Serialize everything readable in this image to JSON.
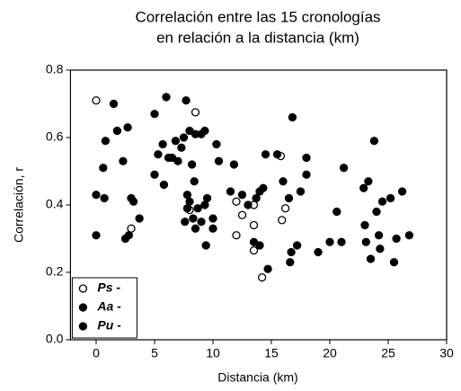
{
  "chart_data": {
    "type": "scatter",
    "title": [
      "Correlación entre las 15 cronologías",
      "en relación a la distancia (km)"
    ],
    "xlabel": "Distancia (km)",
    "ylabel": "Correlación, r",
    "xlim": [
      -2.2,
      30
    ],
    "ylim": [
      0,
      0.8
    ],
    "xticks": [
      0,
      5,
      10,
      15,
      20,
      25,
      30
    ],
    "yticks": [
      {
        "value": 0,
        "label": "0.0"
      },
      0.2,
      0.4,
      0.6,
      0.8
    ],
    "legend": "lower left",
    "series": [
      {
        "name": "Ps -",
        "color": "#000000",
        "marker": "open",
        "x": [
          0,
          8.5,
          3,
          8,
          12,
          12.5,
          12,
          13.5,
          13.5,
          13.5,
          14.2,
          15.8,
          16.2,
          15.9
        ],
        "values": [
          0.71,
          0.675,
          0.33,
          0.385,
          0.41,
          0.37,
          0.31,
          0.4,
          0.34,
          0.265,
          0.185,
          0.545,
          0.39,
          0.355
        ]
      },
      {
        "name": "Aa -",
        "color": "#000000",
        "marker": "filled",
        "x": [
          0,
          0,
          0.6,
          0.7,
          0.8,
          1.5,
          1.8,
          2.3,
          2.7,
          2.5,
          2.8,
          3,
          3.2,
          3.7,
          5,
          5,
          5.3,
          5.7,
          6,
          5.8,
          6.2,
          6.5,
          6.8,
          7,
          7.3,
          7.5,
          7.7,
          8,
          8.5,
          9,
          9.3,
          7.8,
          8,
          7.6,
          8.3,
          8.5,
          8.7,
          9,
          9.3,
          9.5,
          9.4,
          8.2,
          8.4,
          7.8
        ],
        "values": [
          0.43,
          0.31,
          0.51,
          0.42,
          0.59,
          0.7,
          0.62,
          0.53,
          0.63,
          0.3,
          0.31,
          0.42,
          0.41,
          0.36,
          0.67,
          0.49,
          0.55,
          0.58,
          0.72,
          0.46,
          0.54,
          0.54,
          0.59,
          0.53,
          0.57,
          0.6,
          0.71,
          0.62,
          0.61,
          0.61,
          0.62,
          0.43,
          0.41,
          0.35,
          0.36,
          0.33,
          0.39,
          0.35,
          0.4,
          0.42,
          0.28,
          0.52,
          0.47,
          0.39
        ]
      },
      {
        "name": "Pu -",
        "color": "#000000",
        "marker": "filled",
        "x": [
          10,
          10,
          10.3,
          10.5,
          11.5,
          11.8,
          12.5,
          13,
          13.7,
          14,
          14.3,
          14.5,
          13.5,
          14,
          14.7,
          15.5,
          16,
          16.8,
          16.5,
          16.6,
          16.7,
          17.2,
          17.5,
          18,
          18,
          19,
          20,
          20.6,
          21,
          21.2,
          22.9,
          23,
          23.1,
          23.3,
          23.5,
          23.8,
          24,
          24.2,
          24.5,
          24.3,
          25.2,
          25.5,
          25.7,
          26.2,
          26.8
        ],
        "values": [
          0.33,
          0.36,
          0.58,
          0.53,
          0.44,
          0.52,
          0.43,
          0.4,
          0.42,
          0.44,
          0.45,
          0.55,
          0.29,
          0.28,
          0.21,
          0.55,
          0.47,
          0.66,
          0.42,
          0.23,
          0.26,
          0.28,
          0.44,
          0.54,
          0.49,
          0.26,
          0.29,
          0.38,
          0.29,
          0.51,
          0.45,
          0.34,
          0.29,
          0.47,
          0.24,
          0.59,
          0.38,
          0.31,
          0.41,
          0.27,
          0.42,
          0.23,
          0.3,
          0.44,
          0.31
        ]
      }
    ]
  }
}
